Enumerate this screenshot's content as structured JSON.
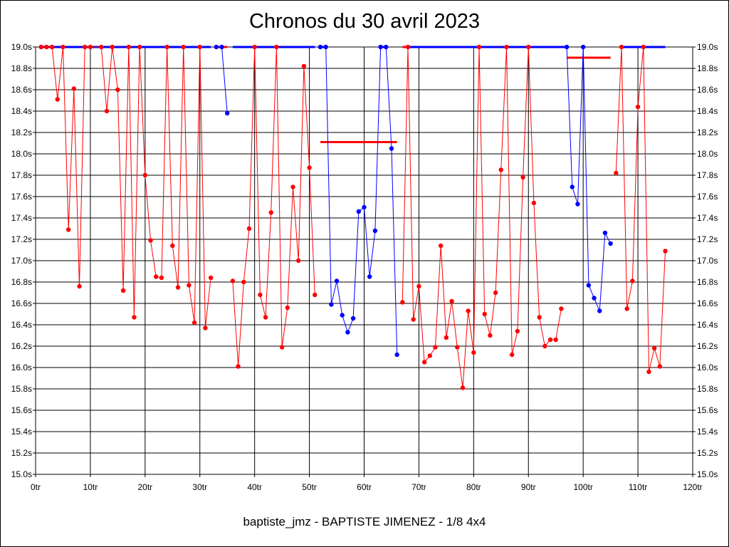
{
  "chart_data": {
    "type": "line",
    "title": "Chronos du 30 avril 2023",
    "subtitle": "baptiste_jmz - BAPTISTE JIMENEZ - 1/8 4x4",
    "xlabel": "",
    "ylabel": "",
    "xlim": [
      0,
      120
    ],
    "ylim": [
      15.0,
      19.0
    ],
    "grid": true,
    "x_ticks": [
      0,
      10,
      20,
      30,
      40,
      50,
      60,
      70,
      80,
      90,
      100,
      110,
      120
    ],
    "x_tick_labels": [
      "0tr",
      "10tr",
      "20tr",
      "30tr",
      "40tr",
      "50tr",
      "60tr",
      "70tr",
      "80tr",
      "90tr",
      "100tr",
      "110tr",
      "120tr"
    ],
    "y_ticks": [
      15.0,
      15.2,
      15.4,
      15.6,
      15.8,
      16.0,
      16.2,
      16.4,
      16.6,
      16.8,
      17.0,
      17.2,
      17.4,
      17.6,
      17.8,
      18.0,
      18.2,
      18.4,
      18.6,
      18.8,
      19.0
    ],
    "y_tick_labels": [
      "15.0s",
      "15.2s",
      "15.4s",
      "15.6s",
      "15.8s",
      "16.0s",
      "16.2s",
      "16.4s",
      "16.6s",
      "16.8s",
      "17.0s",
      "17.2s",
      "17.4s",
      "17.6s",
      "17.8s",
      "18.0s",
      "18.2s",
      "18.4s",
      "18.6s",
      "18.8s",
      "19.0s"
    ],
    "colors": {
      "red": "#ff0000",
      "blue": "#0000ff"
    },
    "series": [
      {
        "color": "red",
        "segments": [
          [
            [
              1,
              19.0
            ],
            [
              2,
              19.0
            ],
            [
              3,
              19.0
            ],
            [
              4,
              18.51
            ],
            [
              5,
              19.0
            ],
            [
              6,
              17.29
            ],
            [
              7,
              18.61
            ],
            [
              8,
              16.76
            ],
            [
              9,
              19.0
            ],
            [
              10,
              19.0
            ],
            [
              12,
              19.0
            ],
            [
              13,
              18.4
            ],
            [
              14,
              19.0
            ],
            [
              15,
              18.6
            ],
            [
              16,
              16.72
            ],
            [
              17,
              19.0
            ],
            [
              18,
              16.47
            ],
            [
              19,
              19.0
            ],
            [
              20,
              17.8
            ],
            [
              21,
              17.19
            ],
            [
              22,
              16.85
            ],
            [
              23,
              16.84
            ],
            [
              24,
              19.0
            ],
            [
              25,
              17.14
            ],
            [
              26,
              16.75
            ],
            [
              27,
              19.0
            ],
            [
              28,
              16.77
            ],
            [
              29,
              16.42
            ],
            [
              30,
              19.0
            ],
            [
              31,
              16.37
            ],
            [
              32,
              16.84
            ]
          ],
          [
            [
              36,
              16.81
            ],
            [
              37,
              16.01
            ],
            [
              38,
              16.8
            ],
            [
              39,
              17.3
            ],
            [
              40,
              19.0
            ],
            [
              41,
              16.68
            ],
            [
              42,
              16.47
            ],
            [
              43,
              17.45
            ],
            [
              44,
              19.0
            ],
            [
              45,
              16.19
            ],
            [
              46,
              16.56
            ],
            [
              47,
              17.69
            ],
            [
              48,
              17.0
            ],
            [
              49,
              18.82
            ],
            [
              50,
              17.87
            ],
            [
              51,
              16.68
            ]
          ],
          [
            [
              67,
              16.61
            ],
            [
              68,
              19.0
            ],
            [
              69,
              16.45
            ],
            [
              70,
              16.76
            ],
            [
              71,
              16.05
            ],
            [
              72,
              16.11
            ],
            [
              73,
              16.19
            ],
            [
              74,
              17.14
            ],
            [
              75,
              16.28
            ],
            [
              76,
              16.62
            ],
            [
              77,
              16.19
            ],
            [
              78,
              15.81
            ],
            [
              79,
              16.53
            ],
            [
              80,
              16.14
            ],
            [
              81,
              19.0
            ],
            [
              82,
              16.5
            ],
            [
              83,
              16.3
            ],
            [
              84,
              16.7
            ],
            [
              85,
              17.85
            ],
            [
              86,
              19.0
            ],
            [
              87,
              16.12
            ],
            [
              88,
              16.34
            ],
            [
              89,
              17.78
            ],
            [
              90,
              19.0
            ],
            [
              91,
              17.54
            ],
            [
              92,
              16.47
            ],
            [
              93,
              16.2
            ],
            [
              94,
              16.26
            ],
            [
              95,
              16.26
            ],
            [
              96,
              16.55
            ]
          ],
          [
            [
              106,
              17.82
            ],
            [
              107,
              19.0
            ],
            [
              108,
              16.55
            ],
            [
              109,
              16.81
            ],
            [
              110,
              18.44
            ],
            [
              111,
              19.0
            ],
            [
              112,
              15.96
            ],
            [
              113,
              16.18
            ],
            [
              114,
              16.01
            ],
            [
              115,
              17.09
            ]
          ]
        ]
      },
      {
        "color": "blue",
        "segments": [
          [
            [
              33,
              19.0
            ],
            [
              34,
              19.0
            ],
            [
              35,
              18.38
            ]
          ],
          [
            [
              52,
              19.0
            ],
            [
              53,
              19.0
            ],
            [
              54,
              16.59
            ],
            [
              55,
              16.81
            ],
            [
              56,
              16.49
            ],
            [
              57,
              16.33
            ],
            [
              58,
              16.46
            ],
            [
              59,
              17.46
            ],
            [
              60,
              17.5
            ],
            [
              61,
              16.85
            ],
            [
              62,
              17.28
            ],
            [
              63,
              19.0
            ],
            [
              64,
              19.0
            ],
            [
              65,
              18.05
            ],
            [
              66,
              16.12
            ]
          ],
          [
            [
              97,
              19.0
            ],
            [
              98,
              17.69
            ],
            [
              99,
              17.53
            ],
            [
              100,
              19.0
            ],
            [
              101,
              16.77
            ],
            [
              102,
              16.65
            ],
            [
              103,
              16.53
            ],
            [
              104,
              17.26
            ],
            [
              105,
              17.16
            ]
          ]
        ]
      }
    ],
    "top_bands": [
      {
        "color": "blue",
        "x": [
          1,
          32
        ]
      },
      {
        "color": "red",
        "x": [
          33,
          35
        ]
      },
      {
        "color": "blue",
        "x": [
          36,
          51
        ]
      },
      {
        "color": "blue",
        "x": [
          52,
          53
        ]
      },
      {
        "color": "blue",
        "x": [
          63,
          64
        ]
      },
      {
        "color": "red",
        "x": [
          67,
          68
        ]
      },
      {
        "color": "blue",
        "x": [
          68,
          97
        ]
      },
      {
        "color": "blue",
        "x": [
          107,
          115
        ]
      }
    ],
    "reference_lines": [
      {
        "color": "red",
        "x": [
          52,
          66
        ],
        "y": 18.11
      },
      {
        "color": "red",
        "x": [
          97,
          105
        ],
        "y": 18.9
      }
    ]
  }
}
